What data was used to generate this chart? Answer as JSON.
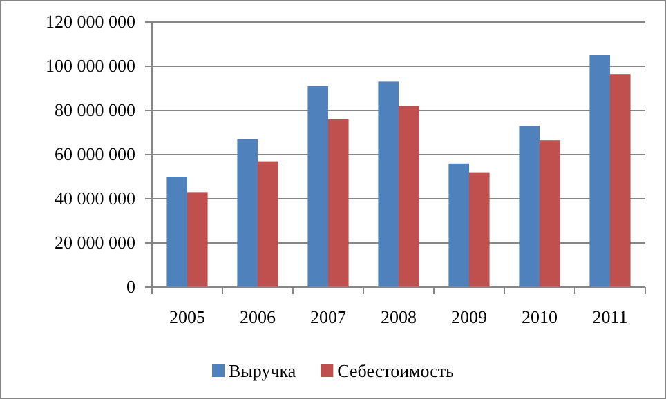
{
  "chart_data": {
    "type": "bar",
    "categories": [
      "2005",
      "2006",
      "2007",
      "2008",
      "2009",
      "2010",
      "2011"
    ],
    "series": [
      {
        "name": "Выручка",
        "color": "#4f81bd",
        "values": [
          50000000,
          67000000,
          91000000,
          93000000,
          56000000,
          73000000,
          105000000
        ]
      },
      {
        "name": "Себестоимость",
        "color": "#c0504d",
        "values": [
          43000000,
          57000000,
          76000000,
          82000000,
          52000000,
          66500000,
          96500000
        ]
      }
    ],
    "ylim": [
      0,
      120000000
    ],
    "yticks": [
      {
        "value": 0,
        "label": "0"
      },
      {
        "value": 20000000,
        "label": "20 000 000"
      },
      {
        "value": 40000000,
        "label": "40 000 000"
      },
      {
        "value": 60000000,
        "label": "60 000 000"
      },
      {
        "value": 80000000,
        "label": "80 000 000"
      },
      {
        "value": 100000000,
        "label": "100 000 000"
      },
      {
        "value": 120000000,
        "label": "120 000 000"
      }
    ],
    "grid": "y",
    "legend": "bottom"
  }
}
